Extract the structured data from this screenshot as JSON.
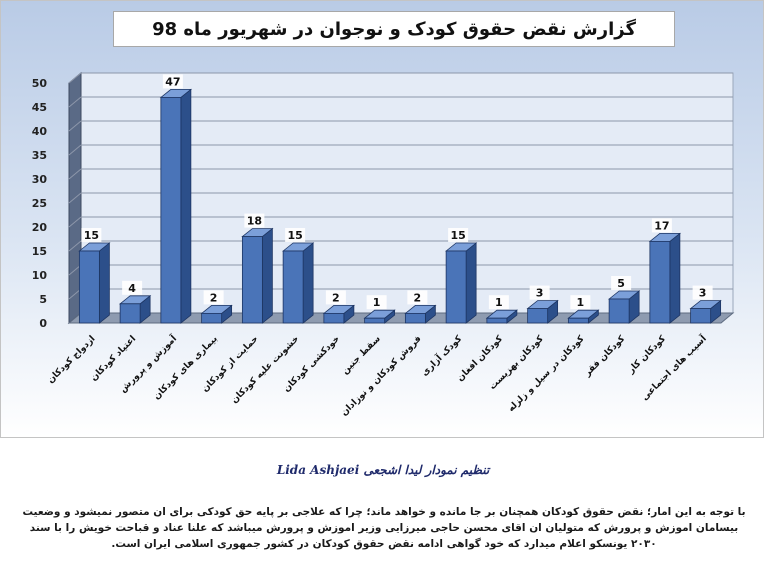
{
  "chart_data": {
    "type": "bar",
    "title": "گزارش نقض حقوق کودک و نوجوان در شهریور ماه 98",
    "xlabel": "",
    "ylabel": "",
    "ylim": [
      0,
      50
    ],
    "yticks": [
      0,
      5,
      10,
      15,
      20,
      25,
      30,
      35,
      40,
      45,
      50
    ],
    "grid": true,
    "legend": "none",
    "bar_color": "#4a74b8",
    "categories": [
      "ازدواج کودکان",
      "اعتیاد کودکان",
      "آموزش و پرورش",
      "بیماری های کودکان",
      "حمایت از کودکان",
      "خشونت علیه کودکان",
      "خودکشی کودکان",
      "سقط جنین",
      "فروش کودکان و نوزادان",
      "کودک آزاری",
      "کودکان افغان",
      "کودکان بهزیست",
      "کودکان در سیل و زلزله",
      "کودکان فقر",
      "کودکان کار",
      "آسیب های اجتماعی"
    ],
    "values": [
      15,
      4,
      47,
      2,
      18,
      15,
      2,
      1,
      2,
      15,
      1,
      3,
      1,
      5,
      17,
      3
    ]
  },
  "credit": "تنظیم نمودار  لیدا اشجعی  Lida Ashjaei",
  "note_lines": [
    "با توجه به این امار؛ نقض حقوق کودکان همچنان بر جا مانده و خواهد ماند؛ چرا که علاجی بر پایه حق کودکی برای ان متصور نمیشود و وضعیت",
    "بیسامان اموزش و پرورش که متولیان ان اقای محسن حاجی میرزایی وزیر اموزش و پرورش میباشد که علنا عناد و قباحت خویش را با سند",
    "۲۰۳۰ یونسکو اعلام میدارد که خود گواهی ادامه نقض حقوق کودکان در کشور جمهوری اسلامی ایران است."
  ]
}
